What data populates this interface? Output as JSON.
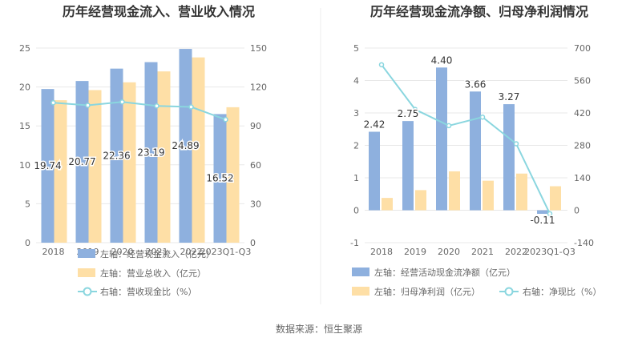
{
  "source": "数据来源：恒生聚源",
  "chart_data": [
    {
      "type": "bar",
      "title": "历年经营现金流入、营业收入情况",
      "categories": [
        "2018",
        "2019",
        "2020",
        "2021",
        "2022",
        "2023Q1-Q3"
      ],
      "tick_labels": [
        "2018",
        "2019",
        "2020",
        "2021",
        "2022",
        "2023Q1-Q3"
      ],
      "yleft": {
        "ticks": [
          0,
          5,
          10,
          15,
          20,
          25
        ],
        "range": [
          0,
          25
        ]
      },
      "yright": {
        "ticks": [
          0,
          30,
          60,
          90,
          120,
          150
        ],
        "range": [
          0,
          150
        ]
      },
      "series": [
        {
          "name": "左轴：经营现金流入（亿元）",
          "axis": "left",
          "kind": "bar",
          "color": "#8eb0de",
          "values": [
            19.74,
            20.77,
            22.36,
            23.19,
            24.89,
            16.52
          ],
          "labels": [
            "19.74",
            "20.77",
            "22.36",
            "23.19",
            "24.89",
            "16.52"
          ]
        },
        {
          "name": "左轴：营业总收入（亿元）",
          "axis": "left",
          "kind": "bar",
          "color": "#fedfa6",
          "values": [
            18.3,
            19.6,
            20.6,
            22.0,
            23.8,
            17.4
          ]
        },
        {
          "name": "右轴：营收现金比（%）",
          "axis": "right",
          "kind": "line",
          "color": "#8ad6df",
          "values": [
            107.9,
            105.9,
            108.5,
            105.4,
            104.6,
            94.9
          ]
        }
      ],
      "grid": true,
      "legend_position": "bottom"
    },
    {
      "type": "bar",
      "title": "历年经营现金流净额、归母净利润情况",
      "categories": [
        "2018",
        "2019",
        "2020",
        "2021",
        "2022",
        "2023Q1-Q3"
      ],
      "tick_labels": [
        "2018",
        "2019",
        "2020",
        "2021",
        "2022",
        "2023Q1-Q3"
      ],
      "yleft": {
        "ticks": [
          -1,
          0,
          1,
          2,
          3,
          4,
          5
        ],
        "range": [
          -1,
          5
        ]
      },
      "yright": {
        "ticks": [
          -140,
          0,
          140,
          280,
          420,
          560,
          700
        ],
        "range": [
          -140,
          700
        ]
      },
      "series": [
        {
          "name": "左轴：经营活动现金流净额（亿元）",
          "axis": "left",
          "kind": "bar",
          "color": "#8eb0de",
          "values": [
            2.42,
            2.75,
            4.4,
            3.66,
            3.27,
            -0.11
          ],
          "labels": [
            "2.42",
            "2.75",
            "4.40",
            "3.66",
            "3.27",
            "-0.11"
          ]
        },
        {
          "name": "左轴：归母净利润（亿元）",
          "axis": "left",
          "kind": "bar",
          "color": "#fedfa6",
          "values": [
            0.38,
            0.62,
            1.2,
            0.91,
            1.13,
            0.74
          ]
        },
        {
          "name": "右轴：净现比（%）",
          "axis": "right",
          "kind": "line",
          "color": "#8ad6df",
          "values": [
            628,
            435,
            365,
            402,
            287,
            -15
          ]
        }
      ],
      "grid": true,
      "legend_position": "bottom"
    }
  ]
}
